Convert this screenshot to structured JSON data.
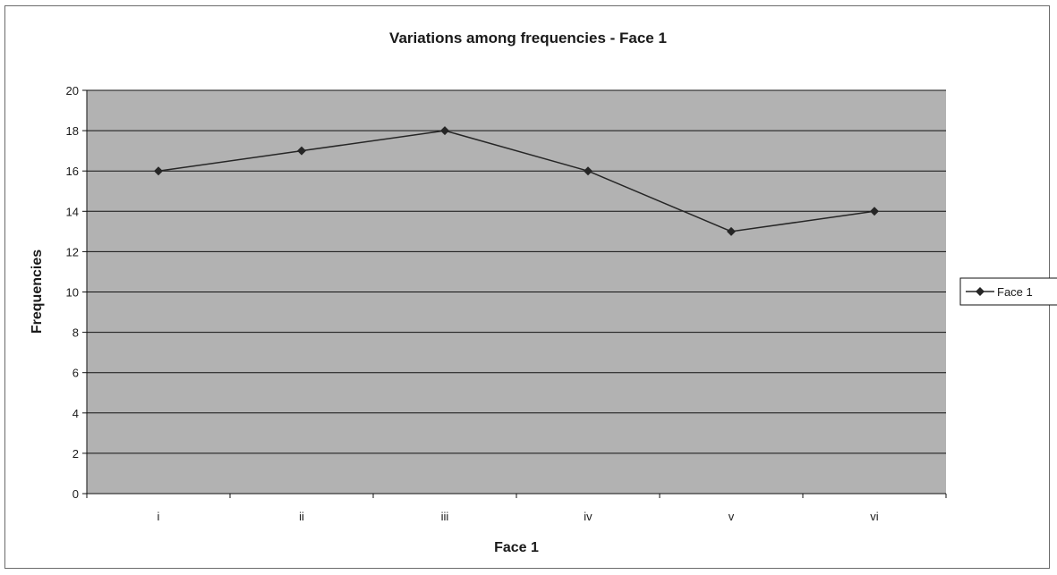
{
  "chart_data": {
    "type": "line",
    "title": "Variations among frequencies - Face 1",
    "xlabel": "Face 1",
    "ylabel": "Frequencies",
    "categories": [
      "i",
      "ii",
      "iii",
      "iv",
      "v",
      "vi"
    ],
    "series": [
      {
        "name": "Face 1",
        "values": [
          16,
          17,
          18,
          16,
          13,
          14
        ]
      }
    ],
    "ylim": [
      0,
      20
    ],
    "yticks": [
      0,
      2,
      4,
      6,
      8,
      10,
      12,
      14,
      16,
      18,
      20
    ],
    "grid": true,
    "legend": "right",
    "colors": {
      "plot_background": "#b2b2b2",
      "line": "#262626",
      "marker": "#262626",
      "grid": "#111111"
    }
  }
}
